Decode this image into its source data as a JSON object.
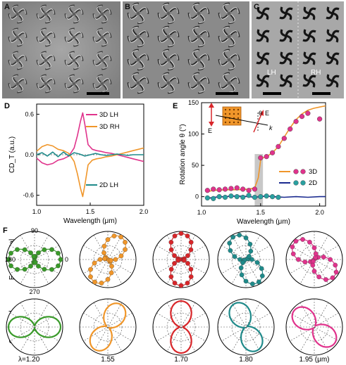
{
  "panels": {
    "A": "A",
    "B": "B",
    "C": "C",
    "D": "D",
    "E": "E",
    "F": "F"
  },
  "sem_c_labels": {
    "left": "LH",
    "right": "RH"
  },
  "chart_data": [
    {
      "id": "D",
      "type": "line",
      "xlabel": "Wavelength (μm)",
      "ylabel": "CD_T (a.u.)",
      "xlim": [
        1.0,
        2.0
      ],
      "ylim": [
        -0.75,
        0.75
      ],
      "xticks": [
        "1.0",
        "1.5",
        "2.0"
      ],
      "yticks": [
        "0.6",
        "0.0",
        "-0.6"
      ],
      "series": [
        {
          "name": "3D LH",
          "color": "#e0338c",
          "x": [
            1.0,
            1.05,
            1.1,
            1.15,
            1.2,
            1.25,
            1.3,
            1.35,
            1.38,
            1.41,
            1.43,
            1.45,
            1.48,
            1.52,
            1.56,
            1.6,
            1.65,
            1.7,
            1.75,
            1.8,
            1.85,
            1.9,
            1.95,
            2.0
          ],
          "y": [
            -0.05,
            -0.12,
            -0.15,
            -0.13,
            -0.08,
            -0.06,
            -0.02,
            0.1,
            0.28,
            0.5,
            0.62,
            0.45,
            0.15,
            0.08,
            0.06,
            0.05,
            0.03,
            0.02,
            0.0,
            -0.02,
            -0.04,
            -0.06,
            -0.08,
            -0.1
          ]
        },
        {
          "name": "3D RH",
          "color": "#f0962a",
          "x": [
            1.0,
            1.05,
            1.1,
            1.15,
            1.2,
            1.25,
            1.3,
            1.35,
            1.38,
            1.41,
            1.43,
            1.45,
            1.48,
            1.52,
            1.56,
            1.6,
            1.65,
            1.7,
            1.75,
            1.8,
            1.85,
            1.9,
            1.95,
            2.0
          ],
          "y": [
            0.05,
            0.12,
            0.15,
            0.13,
            0.08,
            0.06,
            0.02,
            -0.1,
            -0.28,
            -0.5,
            -0.62,
            -0.45,
            -0.15,
            -0.08,
            -0.06,
            -0.05,
            -0.03,
            -0.02,
            0.0,
            0.02,
            0.04,
            0.06,
            0.08,
            0.1
          ]
        },
        {
          "name": "2D LH",
          "color": "#1f8a8a",
          "x": [
            1.0,
            1.05,
            1.1,
            1.15,
            1.2,
            1.25,
            1.3,
            1.35,
            1.4,
            1.45,
            1.5,
            1.55,
            1.6,
            1.65,
            1.7,
            1.75,
            1.8,
            1.85,
            1.9,
            1.95,
            2.0
          ],
          "y": [
            0.0,
            0.03,
            -0.02,
            0.04,
            -0.03,
            0.04,
            -0.02,
            0.03,
            0.01,
            -0.02,
            0.0,
            0.02,
            0.0,
            -0.01,
            0.0,
            0.01,
            0.0,
            -0.01,
            0.0,
            0.0,
            0.0
          ]
        }
      ]
    },
    {
      "id": "E",
      "type": "line",
      "xlabel": "Wavelength (μm)",
      "ylabel": "Rotation angle θ (°)",
      "xlim": [
        1.0,
        2.05
      ],
      "ylim": [
        -15,
        150
      ],
      "xticks": [
        "1.0",
        "1.5",
        "2.0"
      ],
      "yticks": [
        "0",
        "50",
        "100",
        "150"
      ],
      "shaded_band": [
        1.45,
        1.52
      ],
      "inset_labels": {
        "theta": "θ",
        "e_top": "E",
        "e_left": "E",
        "k": "k"
      },
      "series": [
        {
          "name": "3D",
          "color": "#f0962a",
          "x": [
            1.05,
            1.1,
            1.2,
            1.3,
            1.4,
            1.45,
            1.48,
            1.5,
            1.52,
            1.55,
            1.6,
            1.65,
            1.7,
            1.75,
            1.8,
            1.85,
            1.9,
            1.95,
            2.0,
            2.05
          ],
          "y": [
            8,
            10,
            11,
            11,
            12,
            14,
            30,
            58,
            62,
            64,
            70,
            80,
            95,
            110,
            123,
            132,
            138,
            141,
            143,
            145
          ]
        },
        {
          "name": "3D points",
          "color": "#e0338c",
          "x": [
            1.05,
            1.1,
            1.15,
            1.2,
            1.25,
            1.3,
            1.35,
            1.4,
            1.45,
            1.5,
            1.55,
            1.6,
            1.65,
            1.7,
            1.75,
            1.8,
            1.85,
            1.9,
            2.0
          ],
          "y": [
            10,
            12,
            11,
            12,
            13,
            14,
            12,
            10,
            12,
            62,
            64,
            70,
            80,
            93,
            108,
            120,
            128,
            133,
            124
          ]
        },
        {
          "name": "2D",
          "color": "#1a2a8f",
          "x": [
            1.05,
            1.1,
            1.2,
            1.3,
            1.4,
            1.45,
            1.5,
            1.55,
            1.6,
            1.7,
            1.8,
            1.9,
            2.0,
            2.05
          ],
          "y": [
            -3,
            -1,
            0,
            1,
            0,
            -1,
            0,
            1,
            0,
            -1,
            0,
            -1,
            0,
            0
          ]
        },
        {
          "name": "2D points",
          "color": "#2aa0a0",
          "x": [
            1.05,
            1.1,
            1.15,
            1.2,
            1.25,
            1.3,
            1.35,
            1.4,
            1.45,
            1.5,
            1.55,
            1.6,
            1.65
          ],
          "y": [
            -2,
            -3,
            0,
            -1,
            1,
            0,
            -1,
            2,
            -1,
            0,
            1,
            0,
            -1
          ]
        }
      ],
      "legend": [
        {
          "label": "3D",
          "line_color": "#f0962a",
          "marker_color": "#e0338c"
        },
        {
          "label": "2D",
          "line_color": "#1a2a8f",
          "marker_color": "#2aa0a0"
        }
      ]
    },
    {
      "id": "F",
      "type": "scatter",
      "row_labels": [
        "Experimental",
        "Calculated"
      ],
      "angle_labels": {
        "top": "90",
        "left": "180",
        "right": "0",
        "bottom": "270"
      },
      "wavelength_labels": [
        "λ=1.20",
        "1.55",
        "1.70",
        "1.80",
        "1.95 (μm)"
      ],
      "plots": [
        {
          "wavelength": 1.2,
          "major_axis_deg": 0,
          "color": "#3a9a2a"
        },
        {
          "wavelength": 1.55,
          "major_axis_deg": 60,
          "color": "#f0962a"
        },
        {
          "wavelength": 1.7,
          "major_axis_deg": 90,
          "color": "#d8262a"
        },
        {
          "wavelength": 1.8,
          "major_axis_deg": 115,
          "color": "#1f8a8a"
        },
        {
          "wavelength": 1.95,
          "major_axis_deg": 140,
          "color": "#e0338c"
        }
      ]
    }
  ]
}
